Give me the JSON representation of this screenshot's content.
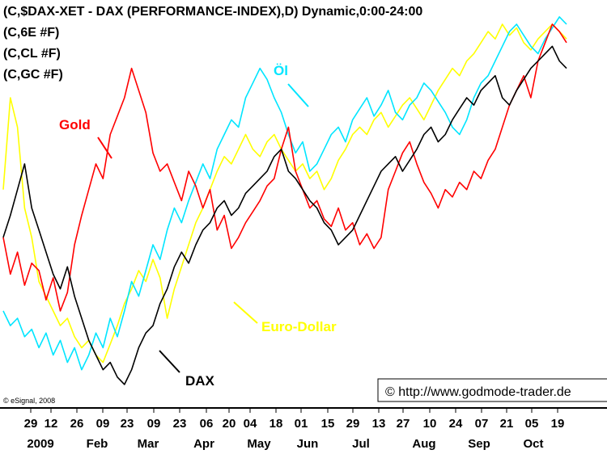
{
  "chart_data": {
    "type": "line",
    "header_lines": [
      "(C,$DAX-XET - DAX (PERFORMANCE-INDEX),D) Dynamic,0:00-24:00",
      "(C,6E #F)",
      "(C,CL #F)",
      "(C,GC #F)"
    ],
    "x_tick_days": [
      "29",
      "12",
      "26",
      "09",
      "23",
      "09",
      "23",
      "06",
      "20",
      "04",
      "18",
      "01",
      "15",
      "29",
      "13",
      "27",
      "10",
      "24",
      "07",
      "21",
      "05",
      "19"
    ],
    "x_tick_months": [
      "2009",
      "Feb",
      "Mar",
      "Apr",
      "May",
      "Jun",
      "Jul",
      "Aug",
      "Sep",
      "Oct"
    ],
    "grid": false,
    "legend": "none",
    "copyright": "© eSignal, 2008",
    "url_box": "© http://www.godmode-trader.de",
    "series": [
      {
        "name": "Gold",
        "color": "#ff0000",
        "label": "Gold",
        "values": [
          0.42,
          0.32,
          0.38,
          0.29,
          0.35,
          0.33,
          0.25,
          0.31,
          0.22,
          0.27,
          0.4,
          0.48,
          0.55,
          0.62,
          0.58,
          0.7,
          0.75,
          0.8,
          0.88,
          0.82,
          0.76,
          0.65,
          0.6,
          0.62,
          0.57,
          0.52,
          0.6,
          0.56,
          0.5,
          0.55,
          0.44,
          0.48,
          0.39,
          0.42,
          0.46,
          0.49,
          0.52,
          0.56,
          0.58,
          0.66,
          0.72,
          0.6,
          0.55,
          0.5,
          0.52,
          0.47,
          0.45,
          0.5,
          0.44,
          0.46,
          0.4,
          0.43,
          0.39,
          0.42,
          0.55,
          0.6,
          0.65,
          0.68,
          0.62,
          0.57,
          0.54,
          0.5,
          0.55,
          0.53,
          0.57,
          0.55,
          0.6,
          0.58,
          0.63,
          0.66,
          0.72,
          0.78,
          0.82,
          0.86,
          0.8,
          0.9,
          0.95,
          1.0,
          0.98,
          0.95
        ]
      },
      {
        "name": "Öl",
        "color": "#00e5ff",
        "label": "Öl",
        "values": [
          0.22,
          0.18,
          0.2,
          0.15,
          0.17,
          0.12,
          0.16,
          0.1,
          0.14,
          0.08,
          0.12,
          0.06,
          0.1,
          0.16,
          0.12,
          0.2,
          0.15,
          0.22,
          0.3,
          0.26,
          0.33,
          0.4,
          0.36,
          0.44,
          0.5,
          0.46,
          0.52,
          0.57,
          0.62,
          0.58,
          0.66,
          0.7,
          0.74,
          0.72,
          0.8,
          0.84,
          0.88,
          0.85,
          0.8,
          0.76,
          0.7,
          0.65,
          0.68,
          0.6,
          0.62,
          0.66,
          0.7,
          0.72,
          0.68,
          0.74,
          0.77,
          0.8,
          0.75,
          0.78,
          0.82,
          0.76,
          0.74,
          0.78,
          0.8,
          0.84,
          0.82,
          0.79,
          0.76,
          0.72,
          0.7,
          0.74,
          0.8,
          0.84,
          0.86,
          0.9,
          0.94,
          0.98,
          1.0,
          0.97,
          0.94,
          0.92,
          0.96,
          0.99,
          1.02,
          1.0
        ]
      },
      {
        "name": "Euro-Dollar",
        "color": "#ffff00",
        "label": "Euro-Dollar",
        "values": [
          0.55,
          0.8,
          0.72,
          0.5,
          0.42,
          0.3,
          0.26,
          0.22,
          0.18,
          0.2,
          0.15,
          0.12,
          0.14,
          0.1,
          0.08,
          0.13,
          0.18,
          0.24,
          0.28,
          0.33,
          0.3,
          0.36,
          0.31,
          0.2,
          0.28,
          0.34,
          0.4,
          0.46,
          0.5,
          0.55,
          0.6,
          0.64,
          0.62,
          0.66,
          0.7,
          0.66,
          0.64,
          0.68,
          0.7,
          0.66,
          0.63,
          0.6,
          0.62,
          0.58,
          0.6,
          0.55,
          0.58,
          0.63,
          0.66,
          0.7,
          0.72,
          0.7,
          0.74,
          0.76,
          0.72,
          0.75,
          0.78,
          0.8,
          0.77,
          0.74,
          0.78,
          0.82,
          0.85,
          0.88,
          0.86,
          0.9,
          0.92,
          0.95,
          0.98,
          0.96,
          1.0,
          0.97,
          0.99,
          0.95,
          0.93,
          0.96,
          0.98,
          1.0,
          0.98,
          0.96
        ]
      },
      {
        "name": "DAX",
        "color": "#000000",
        "label": "DAX",
        "values": [
          0.42,
          0.48,
          0.55,
          0.62,
          0.5,
          0.44,
          0.38,
          0.32,
          0.28,
          0.34,
          0.26,
          0.2,
          0.14,
          0.1,
          0.06,
          0.08,
          0.04,
          0.02,
          0.06,
          0.12,
          0.16,
          0.18,
          0.24,
          0.28,
          0.34,
          0.38,
          0.35,
          0.4,
          0.44,
          0.46,
          0.5,
          0.52,
          0.48,
          0.5,
          0.54,
          0.56,
          0.58,
          0.6,
          0.64,
          0.66,
          0.6,
          0.58,
          0.55,
          0.52,
          0.5,
          0.46,
          0.44,
          0.4,
          0.42,
          0.44,
          0.48,
          0.52,
          0.56,
          0.6,
          0.62,
          0.64,
          0.6,
          0.63,
          0.66,
          0.7,
          0.72,
          0.68,
          0.7,
          0.74,
          0.77,
          0.8,
          0.78,
          0.82,
          0.84,
          0.86,
          0.8,
          0.78,
          0.82,
          0.85,
          0.88,
          0.9,
          0.92,
          0.94,
          0.9,
          0.88
        ]
      }
    ]
  }
}
